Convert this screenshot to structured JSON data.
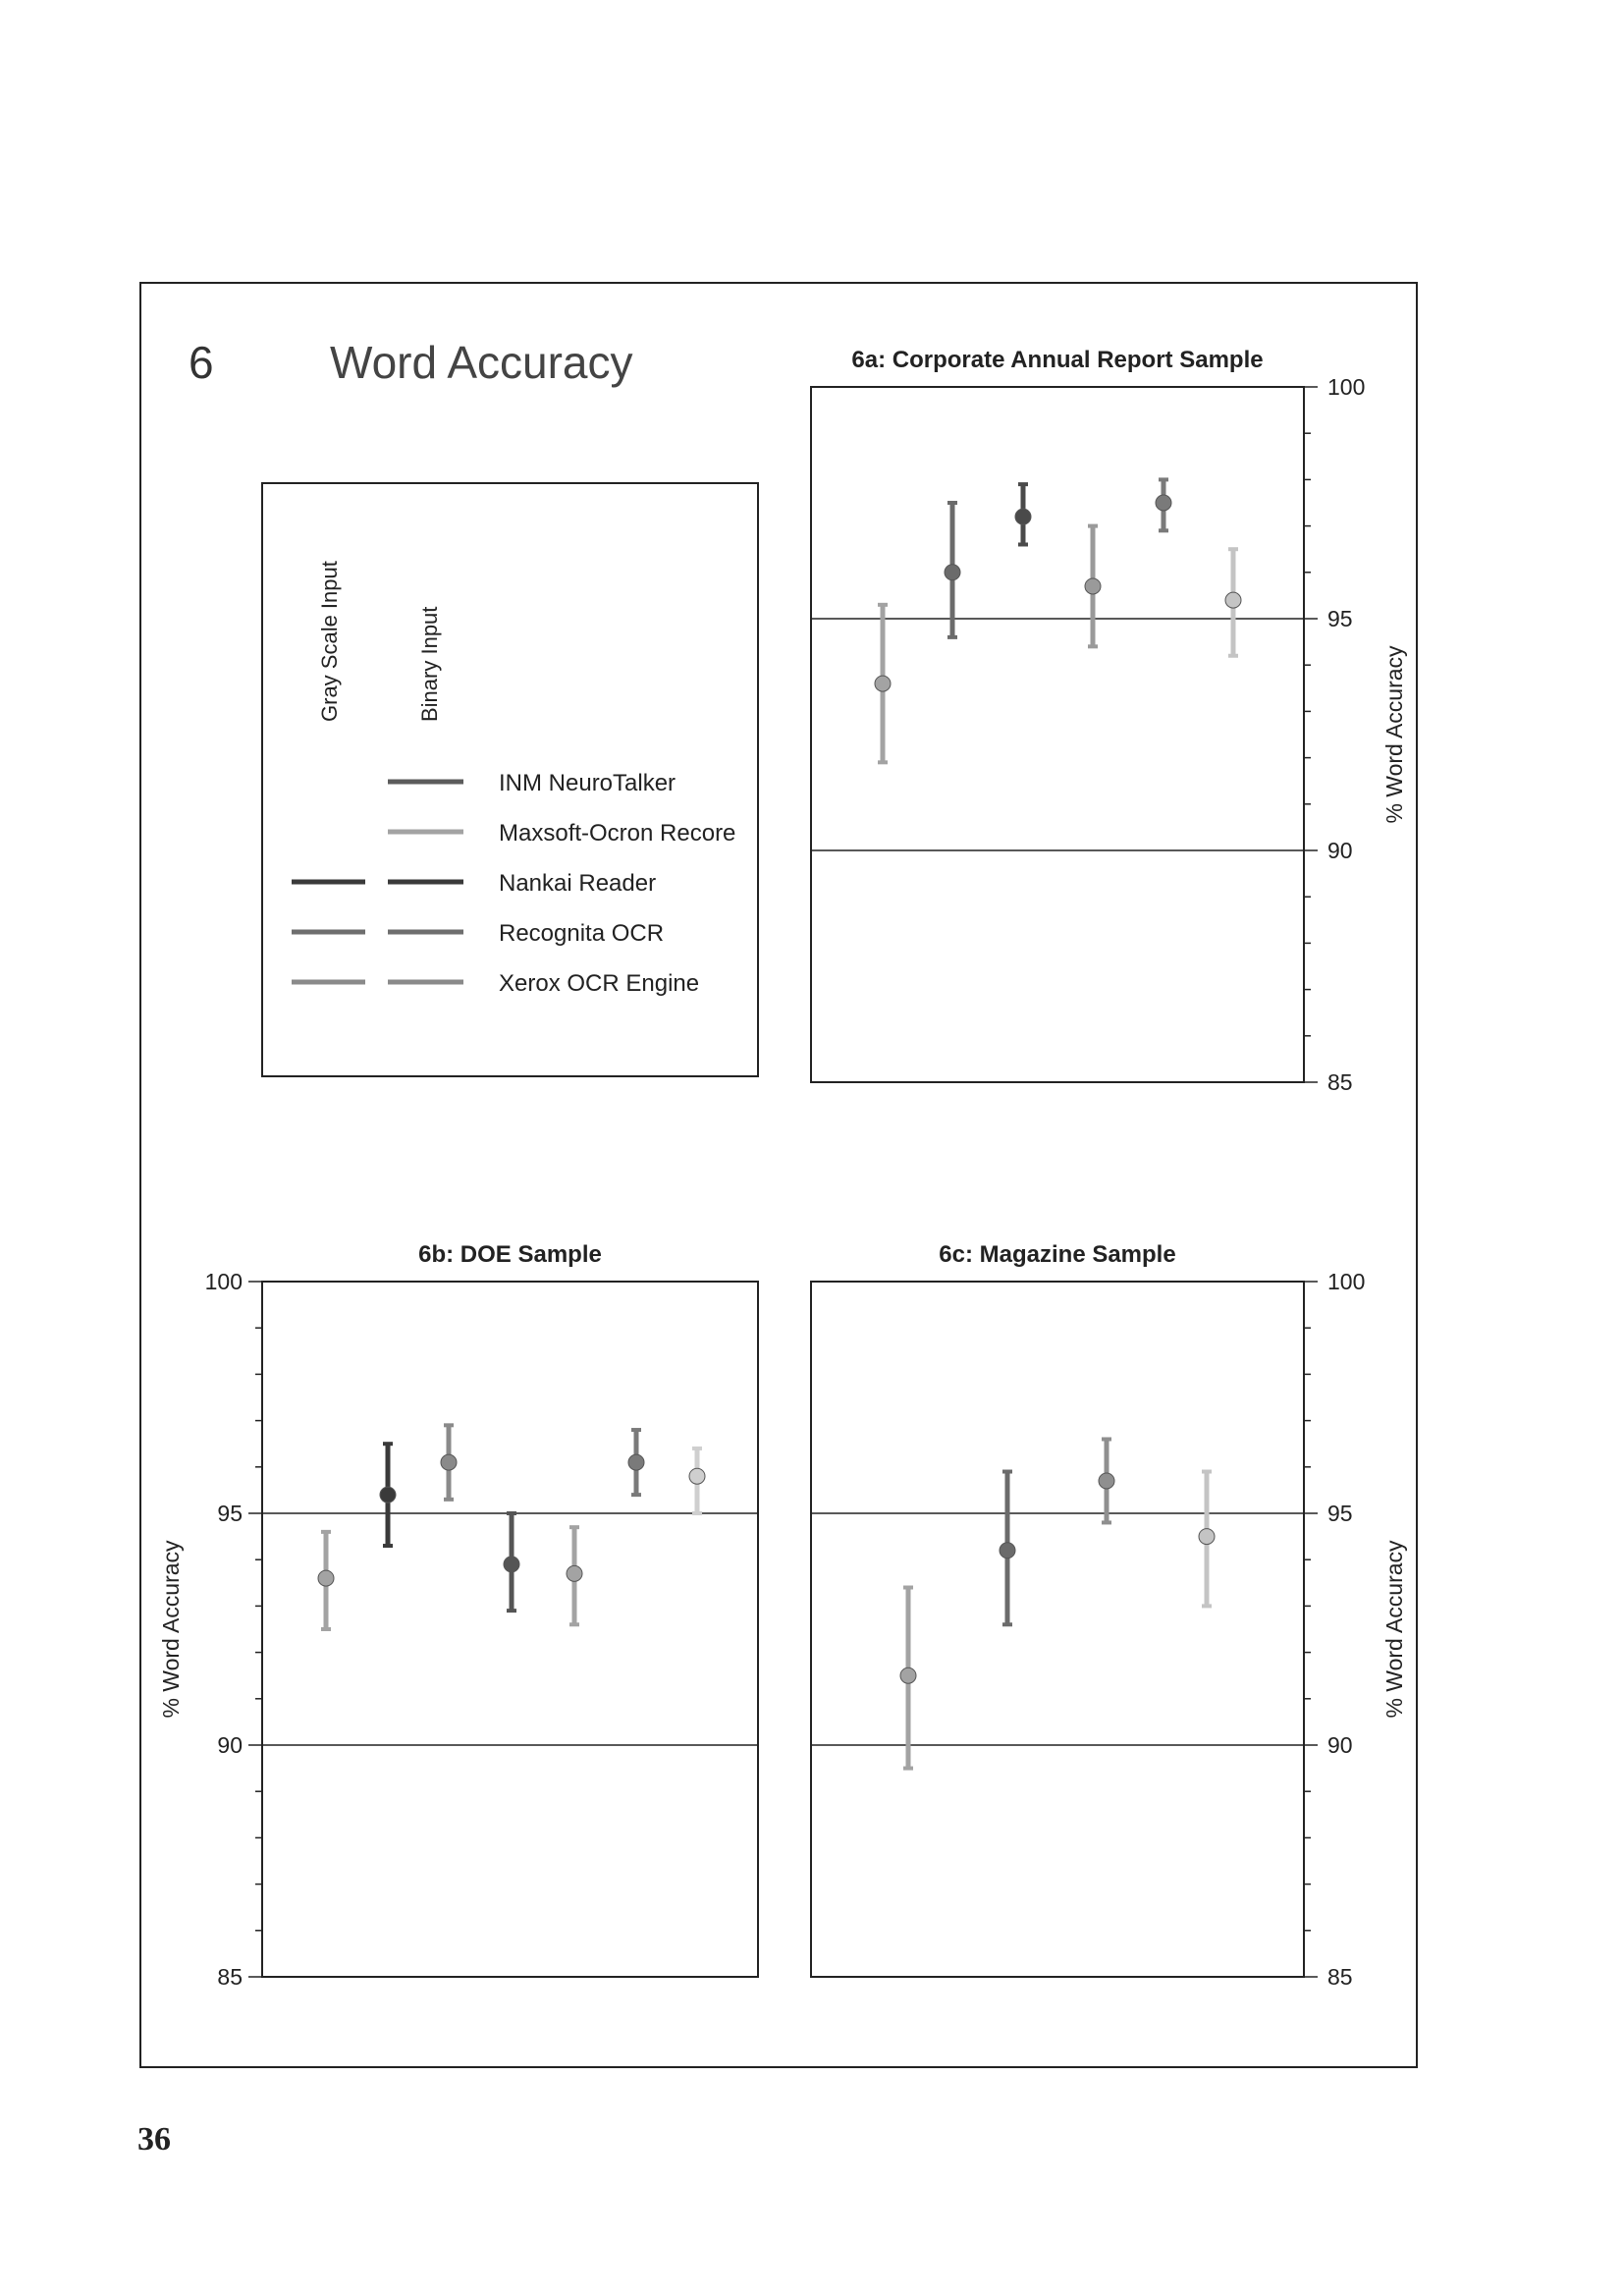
{
  "page": {
    "number": "36"
  },
  "figure": {
    "number": "6",
    "title": "Word Accuracy",
    "legend": {
      "column_headers": [
        "Gray Scale Input",
        "Binary Input"
      ],
      "entries": [
        {
          "label": "INM NeuroTalker",
          "gray": false,
          "binary": true,
          "color": "#5c5c5c"
        },
        {
          "label": "Maxsoft-Ocron Recore",
          "gray": false,
          "binary": true,
          "color": "#a3a3a3"
        },
        {
          "label": "Nankai Reader",
          "gray": true,
          "binary": true,
          "color": "#3a3a3a"
        },
        {
          "label": "Recognita OCR",
          "gray": true,
          "binary": true,
          "color": "#6e6e6e"
        },
        {
          "label": "Xerox OCR Engine",
          "gray": true,
          "binary": true,
          "color": "#8a8a8a"
        }
      ]
    }
  },
  "chart_data": [
    {
      "type": "scatter",
      "title": "6a: Corporate Annual Report Sample",
      "ylabel": "% Word Accuracy",
      "ylim": [
        85,
        100
      ],
      "yticks": [
        85,
        90,
        95,
        100
      ],
      "points": [
        {
          "name": "Maxsoft-Ocron Recore (binary)",
          "y": 93.6,
          "low": 91.9,
          "high": 95.3,
          "color": "#a3a3a3"
        },
        {
          "name": "INM NeuroTalker (binary)",
          "y": 96.0,
          "low": 94.6,
          "high": 97.5,
          "color": "#6b6b6b"
        },
        {
          "name": "Nankai Reader (gray)",
          "y": 97.2,
          "low": 96.6,
          "high": 97.9,
          "color": "#4a4a4a"
        },
        {
          "name": "Recognita OCR (binary)",
          "y": 95.7,
          "low": 94.4,
          "high": 97.0,
          "color": "#9a9a9a"
        },
        {
          "name": "Xerox OCR Engine (gray)",
          "y": 97.5,
          "low": 96.9,
          "high": 98.0,
          "color": "#7a7a7a"
        },
        {
          "name": "Xerox OCR Engine (binary)",
          "y": 95.4,
          "low": 94.2,
          "high": 96.5,
          "color": "#c4c4c4"
        }
      ]
    },
    {
      "type": "scatter",
      "title": "6b: DOE Sample",
      "ylabel": "% Word Accuracy",
      "ylim": [
        85,
        100
      ],
      "yticks": [
        85,
        90,
        95,
        100
      ],
      "points": [
        {
          "name": "Maxsoft-Ocron Recore (binary)",
          "y": 93.6,
          "low": 92.5,
          "high": 94.6,
          "color": "#a3a3a3"
        },
        {
          "name": "Nankai Reader (gray)",
          "y": 95.4,
          "low": 94.3,
          "high": 96.5,
          "color": "#3a3a3a"
        },
        {
          "name": "Nankai Reader (binary)",
          "y": 96.1,
          "low": 95.3,
          "high": 96.9,
          "color": "#8a8a8a"
        },
        {
          "name": "Recognita OCR (gray)",
          "y": 93.9,
          "low": 92.9,
          "high": 95.0,
          "color": "#555555"
        },
        {
          "name": "Recognita OCR (binary)",
          "y": 93.7,
          "low": 92.6,
          "high": 94.7,
          "color": "#a3a3a3"
        },
        {
          "name": "Xerox OCR Engine (gray)",
          "y": 96.1,
          "low": 95.4,
          "high": 96.8,
          "color": "#7a7a7a"
        },
        {
          "name": "Xerox OCR Engine (binary)",
          "y": 95.8,
          "low": 95.0,
          "high": 96.4,
          "color": "#cfcfcf"
        }
      ]
    },
    {
      "type": "scatter",
      "title": "6c: Magazine Sample",
      "ylabel": "% Word Accuracy",
      "ylim": [
        85,
        100
      ],
      "yticks": [
        85,
        90,
        95,
        100
      ],
      "points": [
        {
          "name": "Maxsoft-Ocron Recore (binary)",
          "y": 91.5,
          "low": 89.5,
          "high": 93.4,
          "color": "#a3a3a3"
        },
        {
          "name": "Nankai Reader (binary)",
          "y": 94.2,
          "low": 92.6,
          "high": 95.9,
          "color": "#6b6b6b"
        },
        {
          "name": "Recognita OCR (binary)",
          "y": 95.7,
          "low": 94.8,
          "high": 96.6,
          "color": "#8f8f8f"
        },
        {
          "name": "Xerox OCR Engine (binary)",
          "y": 94.5,
          "low": 93.0,
          "high": 95.9,
          "color": "#c4c4c4"
        }
      ]
    }
  ]
}
